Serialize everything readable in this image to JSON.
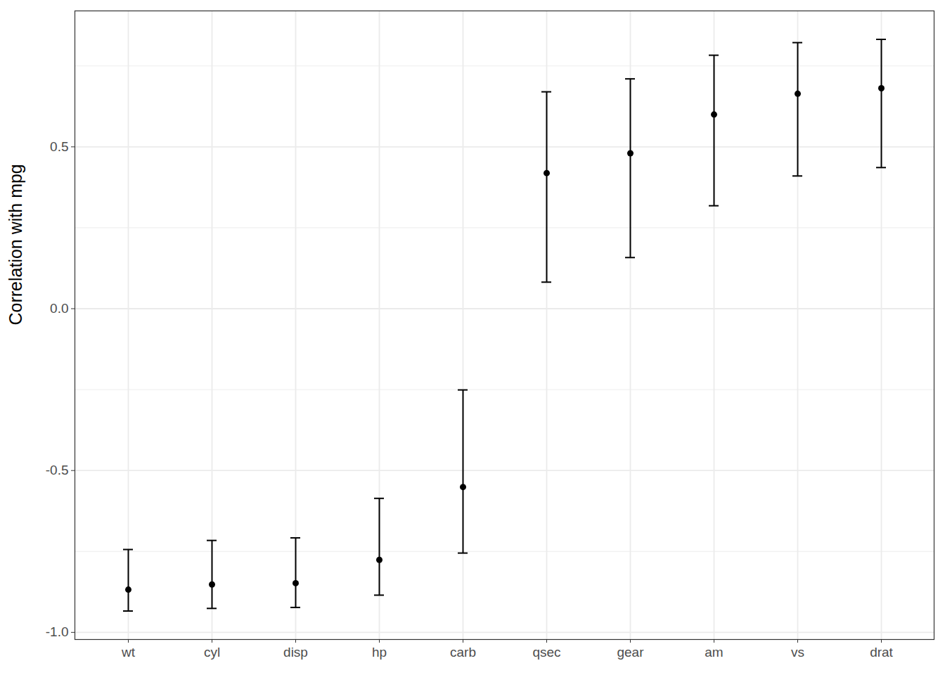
{
  "chart_data": {
    "type": "errorbar",
    "ylabel": "Correlation with mpg",
    "categories": [
      "wt",
      "cyl",
      "disp",
      "hp",
      "carb",
      "qsec",
      "gear",
      "am",
      "vs",
      "drat"
    ],
    "values": [
      -0.868,
      -0.852,
      -0.848,
      -0.776,
      -0.551,
      0.419,
      0.48,
      0.6,
      0.664,
      0.681
    ],
    "lower": [
      -0.934,
      -0.926,
      -0.923,
      -0.885,
      -0.755,
      0.082,
      0.158,
      0.318,
      0.41,
      0.436
    ],
    "upper": [
      -0.744,
      -0.716,
      -0.708,
      -0.586,
      -0.251,
      0.67,
      0.71,
      0.783,
      0.822,
      0.832
    ],
    "color": "#000000",
    "ylim": [
      -1.022,
      0.92
    ],
    "yticks": [
      {
        "value": -1,
        "label": "-1.0"
      },
      -0.5,
      {
        "value": 0,
        "label": "0.0"
      },
      0.5
    ],
    "grid": true
  }
}
